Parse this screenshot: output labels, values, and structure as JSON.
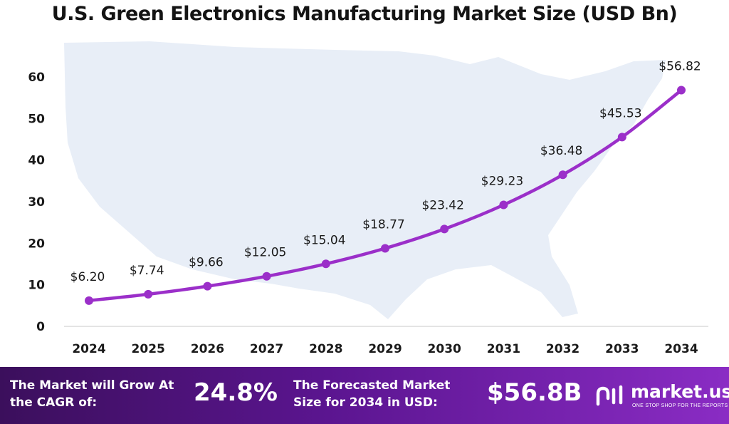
{
  "chart_data": {
    "type": "line",
    "title": "U.S. Green Electronics Manufacturing Market Size (USD Bn)",
    "xlabel": "",
    "ylabel": "",
    "categories": [
      "2024",
      "2025",
      "2026",
      "2027",
      "2028",
      "2029",
      "2030",
      "2031",
      "2032",
      "2033",
      "2034"
    ],
    "series": [
      {
        "values": [
          6.2,
          7.74,
          9.66,
          12.05,
          15.04,
          18.77,
          23.42,
          29.23,
          36.48,
          45.53,
          56.82
        ],
        "labels": [
          "$6.20",
          "$7.74",
          "$9.66",
          "$12.05",
          "$15.04",
          "$18.77",
          "$23.42",
          "$29.23",
          "$36.48",
          "$45.53",
          "$56.82"
        ],
        "color": "#9b2fc9"
      }
    ],
    "ylim": [
      0,
      60
    ],
    "yticks": [
      0,
      10,
      20,
      30,
      40,
      50,
      60
    ],
    "grid": false,
    "legend": "none"
  },
  "footer": {
    "cagr_label": "The Market will Grow At the CAGR of:",
    "cagr_value": "24.8%",
    "forecast_label": "The Forecasted Market Size for 2034 in USD:",
    "forecast_value": "$56.8B",
    "brand_name": "market.us",
    "brand_tagline": "ONE STOP SHOP FOR THE REPORTS",
    "logo_icon": "market-us-logo-icon"
  },
  "colors": {
    "line": "#9b2fc9",
    "footer_start": "#3b0f5c",
    "footer_end": "#8a2cc4",
    "map": "#e6edf7"
  }
}
